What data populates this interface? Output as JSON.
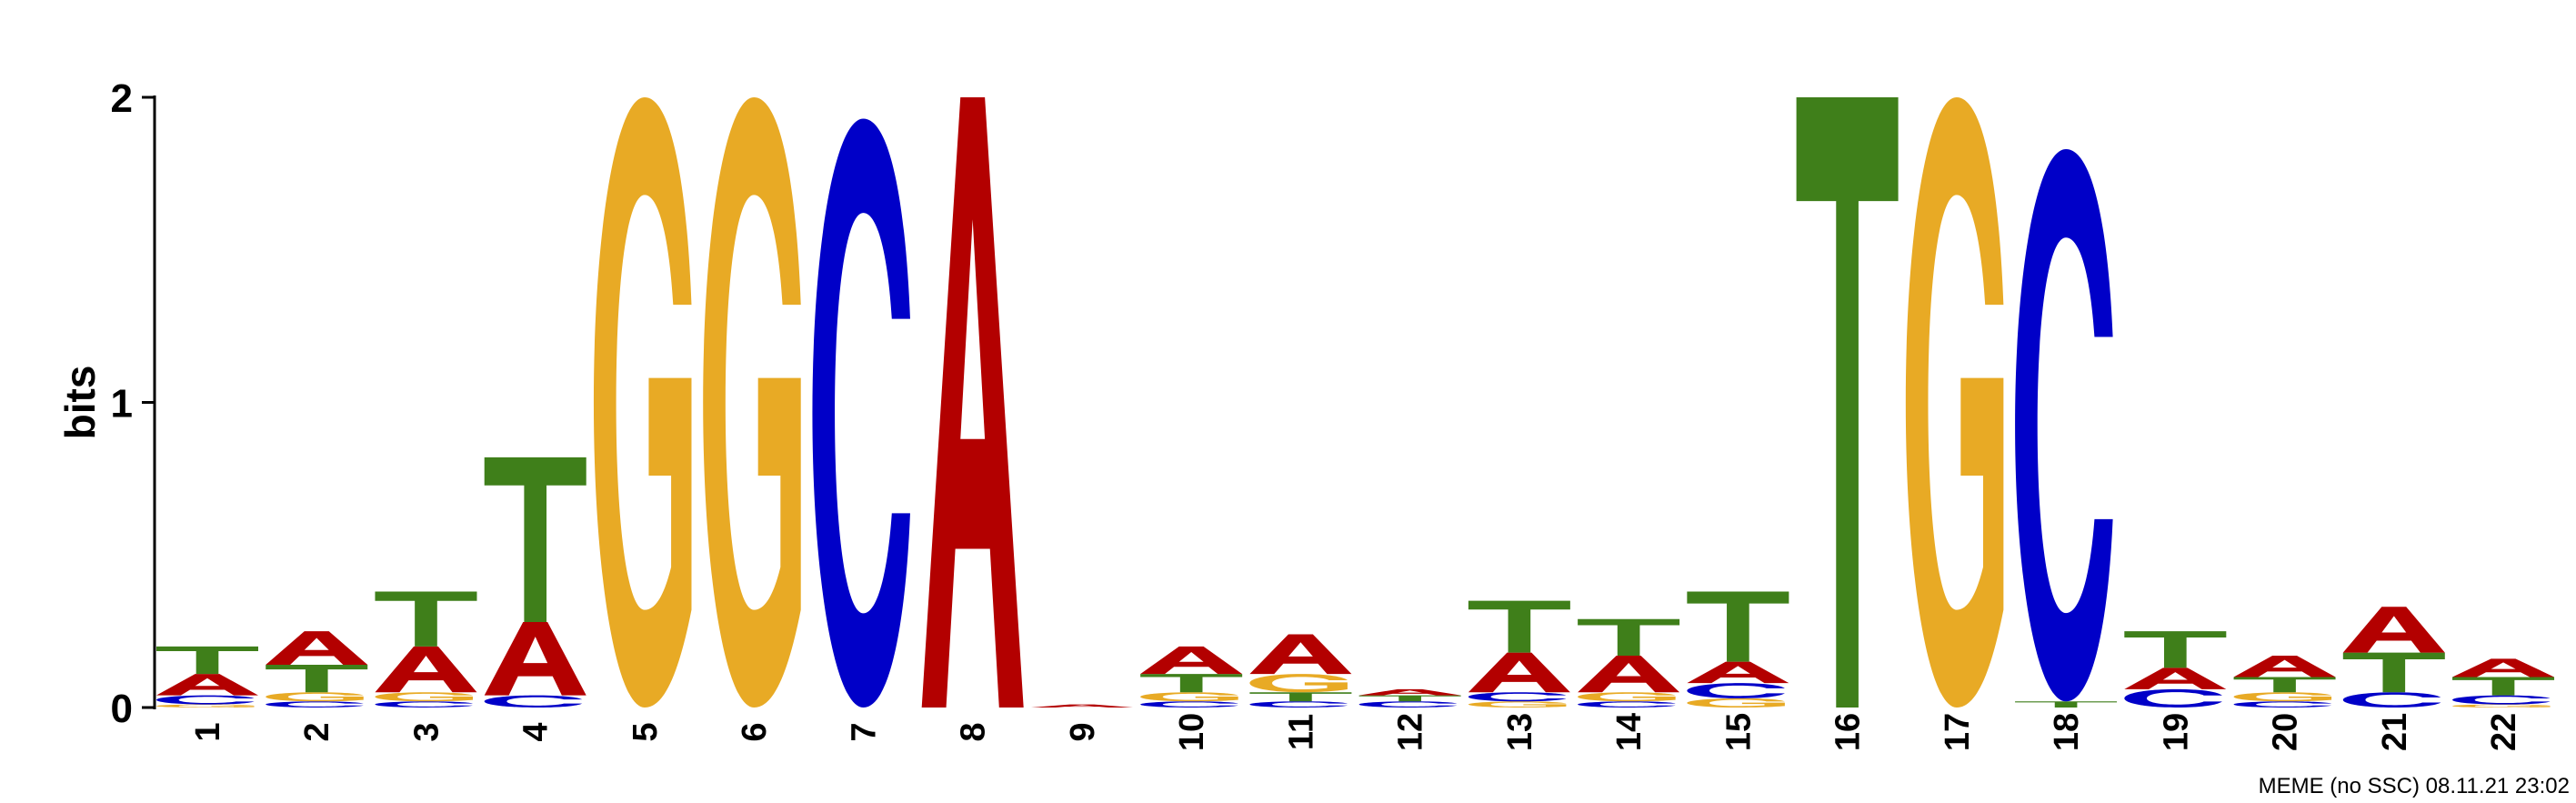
{
  "chart_data": {
    "type": "sequence-logo",
    "ylabel": "bits",
    "ylim": [
      0,
      2
    ],
    "yticks": [
      "0",
      "1",
      "2"
    ],
    "footer": "MEME (no SSC) 08.11.21 23:02",
    "letter_colors": {
      "A": "#b30000",
      "C": "#0000c8",
      "G": "#e8aa25",
      "T": "#3f7f1a"
    },
    "positions": [
      {
        "label": "1",
        "stack": [
          [
            "G",
            0.01
          ],
          [
            "C",
            0.03
          ],
          [
            "A",
            0.07
          ],
          [
            "T",
            0.09
          ]
        ]
      },
      {
        "label": "2",
        "stack": [
          [
            "C",
            0.02
          ],
          [
            "G",
            0.03
          ],
          [
            "T",
            0.09
          ],
          [
            "A",
            0.11
          ]
        ]
      },
      {
        "label": "3",
        "stack": [
          [
            "C",
            0.02
          ],
          [
            "G",
            0.03
          ],
          [
            "A",
            0.15
          ],
          [
            "T",
            0.18
          ]
        ]
      },
      {
        "label": "4",
        "stack": [
          [
            "C",
            0.04
          ],
          [
            "A",
            0.24
          ],
          [
            "T",
            0.54
          ]
        ]
      },
      {
        "label": "5",
        "stack": [
          [
            "G",
            2.0
          ]
        ]
      },
      {
        "label": "6",
        "stack": [
          [
            "G",
            2.0
          ]
        ]
      },
      {
        "label": "7",
        "stack": [
          [
            "C",
            1.93
          ]
        ]
      },
      {
        "label": "8",
        "stack": [
          [
            "A",
            2.0
          ]
        ]
      },
      {
        "label": "9",
        "stack": [
          [
            "A",
            0.01
          ]
        ]
      },
      {
        "label": "10",
        "stack": [
          [
            "C",
            0.02
          ],
          [
            "G",
            0.03
          ],
          [
            "T",
            0.06
          ],
          [
            "A",
            0.09
          ]
        ]
      },
      {
        "label": "11",
        "stack": [
          [
            "C",
            0.02
          ],
          [
            "T",
            0.03
          ],
          [
            "G",
            0.06
          ],
          [
            "A",
            0.13
          ]
        ]
      },
      {
        "label": "12",
        "stack": [
          [
            "C",
            0.02
          ],
          [
            "T",
            0.02
          ],
          [
            "A",
            0.02
          ]
        ]
      },
      {
        "label": "13",
        "stack": [
          [
            "G",
            0.02
          ],
          [
            "C",
            0.03
          ],
          [
            "A",
            0.13
          ],
          [
            "T",
            0.17
          ]
        ]
      },
      {
        "label": "14",
        "stack": [
          [
            "C",
            0.02
          ],
          [
            "G",
            0.03
          ],
          [
            "A",
            0.12
          ],
          [
            "T",
            0.12
          ]
        ]
      },
      {
        "label": "15",
        "stack": [
          [
            "G",
            0.03
          ],
          [
            "C",
            0.05
          ],
          [
            "A",
            0.07
          ],
          [
            "T",
            0.23
          ]
        ]
      },
      {
        "label": "16",
        "stack": [
          [
            "T",
            2.0
          ]
        ]
      },
      {
        "label": "17",
        "stack": [
          [
            "G",
            2.0
          ]
        ]
      },
      {
        "label": "18",
        "stack": [
          [
            "T",
            0.02
          ],
          [
            "C",
            1.81
          ]
        ]
      },
      {
        "label": "19",
        "stack": [
          [
            "C",
            0.06
          ],
          [
            "A",
            0.07
          ],
          [
            "T",
            0.12
          ]
        ]
      },
      {
        "label": "20",
        "stack": [
          [
            "C",
            0.02
          ],
          [
            "G",
            0.03
          ],
          [
            "T",
            0.05
          ],
          [
            "A",
            0.07
          ]
        ]
      },
      {
        "label": "21",
        "stack": [
          [
            "C",
            0.05
          ],
          [
            "T",
            0.13
          ],
          [
            "A",
            0.15
          ]
        ]
      },
      {
        "label": "22",
        "stack": [
          [
            "G",
            0.01
          ],
          [
            "C",
            0.03
          ],
          [
            "T",
            0.06
          ],
          [
            "A",
            0.06
          ]
        ]
      }
    ]
  }
}
